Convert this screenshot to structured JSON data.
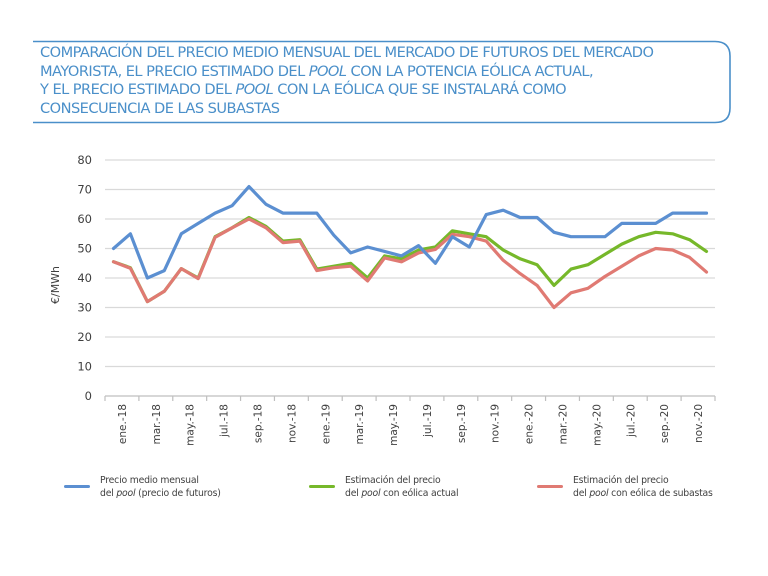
{
  "title": {
    "lines": [
      {
        "pre": "COMPARACIÓN DEL PRECIO MEDIO MENSUAL DEL MERCADO DE FUTUROS DEL MERCADO",
        "em": "",
        "post": ""
      },
      {
        "pre": "MAYORISTA, EL PRECIO ESTIMADO DEL ",
        "em": "POOL",
        "post": " CON LA POTENCIA EÓLICA ACTUAL,"
      },
      {
        "pre": "Y EL PRECIO ESTIMADO DEL ",
        "em": "POOL",
        "post": " CON LA EÓLICA QUE SE INSTALARÁ COMO"
      },
      {
        "pre": "CONSECUENCIA DE LAS SUBASTAS",
        "em": "",
        "post": ""
      }
    ],
    "color": "#4a8fc9"
  },
  "legend": [
    {
      "line1": "Precio medio mensual",
      "line2_pre": "del ",
      "line2_em": "pool",
      "line2_post": " (precio de futuros)",
      "color": "#5b8fd1"
    },
    {
      "line1": "Estimación del precio",
      "line2_pre": "del ",
      "line2_em": "pool",
      "line2_post": " con eólica actual",
      "color": "#76b82a"
    },
    {
      "line1": "Estimación del precio",
      "line2_pre": "del ",
      "line2_em": "pool",
      "line2_post": " con eólica de subastas",
      "color": "#e07a73"
    }
  ],
  "chart_data": {
    "type": "line",
    "title": "COMPARACIÓN DEL PRECIO MEDIO MENSUAL DEL MERCADO DE FUTUROS DEL MERCADO MAYORISTA, EL PRECIO ESTIMADO DEL POOL CON LA POTENCIA EÓLICA ACTUAL, Y EL PRECIO ESTIMADO DEL POOL CON LA EÓLICA QUE SE INSTALARÁ COMO CONSECUENCIA DE LAS SUBASTAS",
    "xlabel": "",
    "ylabel": "€/MWh",
    "ylim": [
      0,
      80
    ],
    "yticks": [
      0,
      10,
      20,
      30,
      40,
      50,
      60,
      70,
      80
    ],
    "grid": true,
    "legend_position": "bottom",
    "x": [
      "ene.-18",
      "feb.-18",
      "mar.-18",
      "abr.-18",
      "may.-18",
      "jun.-18",
      "jul.-18",
      "ago.-18",
      "sep.-18",
      "oct.-18",
      "nov.-18",
      "dic.-18",
      "ene.-19",
      "feb.-19",
      "mar.-19",
      "abr.-19",
      "may.-19",
      "jun.-19",
      "jul.-19",
      "ago.-19",
      "sep.-19",
      "oct.-19",
      "nov.-19",
      "dic.-19",
      "ene.-20",
      "feb.-20",
      "mar.-20",
      "abr.-20",
      "may.-20",
      "jun.-20",
      "jul.-20",
      "ago.-20",
      "sep.-20",
      "oct.-20",
      "nov.-20",
      "dic.-20"
    ],
    "xtick_labels": [
      "ene.-18",
      "mar.-18",
      "may.-18",
      "jul.-18",
      "sep.-18",
      "nov.-18",
      "ene.-19",
      "mar.-19",
      "may.-19",
      "jul.-19",
      "sep.-19",
      "nov.-19",
      "ene.-20",
      "mar.-20",
      "may.-20",
      "jul.-20",
      "sep.-20",
      "nov.-20"
    ],
    "series": [
      {
        "name": "Precio medio mensual del pool (precio de futuros)",
        "color": "#5b8fd1",
        "values": [
          50,
          55,
          40,
          42.5,
          55,
          58.5,
          62,
          64.5,
          71,
          65,
          62,
          62,
          62,
          54.5,
          48.5,
          50.5,
          49,
          47.5,
          51,
          45,
          54,
          50.5,
          61.5,
          63,
          60.5,
          60.5,
          55.5,
          54,
          54,
          54,
          58.5,
          58.5,
          58.5,
          62,
          62,
          62
        ]
      },
      {
        "name": "Estimación del precio del pool con eólica actual",
        "color": "#76b82a",
        "values": [
          45.5,
          43.5,
          32,
          35.5,
          43.2,
          40,
          54,
          57,
          60.5,
          57.5,
          52.5,
          53,
          43,
          44,
          45,
          40,
          47.5,
          46.5,
          49.5,
          50.5,
          56,
          55,
          54,
          49.5,
          46.5,
          44.5,
          37.5,
          43,
          44.5,
          48,
          51.5,
          54,
          55.5,
          55,
          53,
          49
        ]
      },
      {
        "name": "Estimación del precio del pool con eólica de subastas",
        "color": "#e07a73",
        "values": [
          45.5,
          43.3,
          32,
          35.5,
          43.2,
          39.8,
          53.8,
          57,
          60,
          57,
          52,
          52.5,
          42.5,
          43.5,
          44,
          39,
          46.8,
          45.5,
          48.5,
          49.7,
          54.8,
          54,
          52.5,
          46,
          41.5,
          37.5,
          30,
          35,
          36.5,
          40.5,
          44,
          47.5,
          50,
          49.5,
          47,
          42
        ]
      }
    ]
  }
}
